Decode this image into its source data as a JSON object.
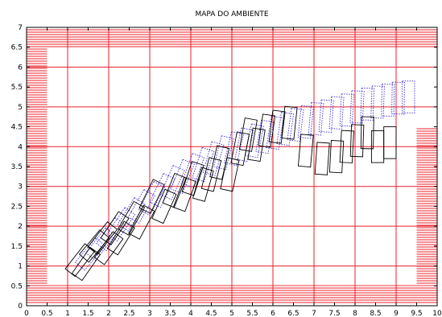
{
  "chart_data": {
    "type": "scatter",
    "title": "MAPA DO AMBIENTE",
    "xlabel": "",
    "ylabel": "",
    "xlim": [
      0,
      10
    ],
    "ylim": [
      0,
      7
    ],
    "xticks": [
      "0",
      "0.5",
      "1",
      "1.5",
      "2",
      "2.5",
      "3",
      "3.5",
      "4",
      "4.5",
      "5",
      "5.5",
      "6",
      "6.5",
      "7",
      "7.5",
      "8",
      "8.5",
      "9",
      "9.5",
      "10"
    ],
    "yticks": [
      "0",
      "0.5",
      "1",
      "1.5",
      "2",
      "2.5",
      "3",
      "3.5",
      "4",
      "4.5",
      "5",
      "5.5",
      "6",
      "6.5",
      "7"
    ],
    "grid": true,
    "grid_step": 1,
    "colors": {
      "walls": "#e8202a",
      "grid": "#e8202a",
      "planned_path": "#3a2bd6",
      "actual_path": "#000000",
      "axes": "#000000"
    },
    "walls": [
      {
        "name": "top-wall",
        "x0": 0,
        "x1": 10,
        "y0": 6.5,
        "y1": 7.0
      },
      {
        "name": "bottom-wall",
        "x0": 0,
        "x1": 10,
        "y0": 0.5,
        "y1": 0.55
      },
      {
        "name": "bottom-band",
        "x0": 0,
        "x1": 10,
        "y0": 0.05,
        "y1": 0.5
      },
      {
        "name": "left-wall",
        "x0": 0,
        "x1": 0.5,
        "y0": 0.5,
        "y1": 6.5
      },
      {
        "name": "right-wall",
        "x0": 9.5,
        "x1": 10,
        "y0": 0.55,
        "y1": 4.5
      }
    ],
    "series": [
      {
        "style": "dotted",
        "rect_w": 0.3,
        "rect_h": 0.8,
        "poses": [
          [
            1.55,
            1.3,
            40
          ],
          [
            1.8,
            1.55,
            38
          ],
          [
            2.05,
            1.8,
            36
          ],
          [
            2.3,
            2.05,
            34
          ],
          [
            2.55,
            2.3,
            32
          ],
          [
            2.8,
            2.5,
            30
          ],
          [
            3.05,
            2.7,
            28
          ],
          [
            3.3,
            2.9,
            26
          ],
          [
            3.55,
            3.1,
            24
          ],
          [
            3.8,
            3.25,
            22
          ],
          [
            4.05,
            3.4,
            20
          ],
          [
            4.3,
            3.55,
            18
          ],
          [
            4.55,
            3.7,
            16
          ],
          [
            4.8,
            3.85,
            14
          ],
          [
            5.05,
            3.95,
            13
          ],
          [
            5.3,
            4.05,
            12
          ],
          [
            5.55,
            4.15,
            11
          ],
          [
            5.8,
            4.25,
            10
          ],
          [
            6.05,
            4.35,
            9
          ],
          [
            6.3,
            4.45,
            8
          ],
          [
            6.55,
            4.55,
            7
          ],
          [
            6.8,
            4.62,
            6
          ],
          [
            7.05,
            4.7,
            5
          ],
          [
            7.3,
            4.77,
            4
          ],
          [
            7.55,
            4.85,
            4
          ],
          [
            7.8,
            4.92,
            3
          ],
          [
            8.05,
            5.0,
            3
          ],
          [
            8.3,
            5.07,
            2
          ],
          [
            8.55,
            5.12,
            2
          ],
          [
            8.8,
            5.17,
            1
          ],
          [
            9.05,
            5.22,
            1
          ],
          [
            9.3,
            5.25,
            0
          ]
        ]
      },
      {
        "style": "solid",
        "rect_w": 0.3,
        "rect_h": 0.8,
        "poses": [
          [
            1.3,
            1.15,
            38
          ],
          [
            1.45,
            1.05,
            35
          ],
          [
            1.65,
            1.5,
            40
          ],
          [
            1.85,
            1.7,
            38
          ],
          [
            2.0,
            1.45,
            36
          ],
          [
            2.15,
            1.95,
            34
          ],
          [
            2.3,
            1.7,
            32
          ],
          [
            2.55,
            2.2,
            30
          ],
          [
            2.8,
            2.1,
            28
          ],
          [
            3.05,
            2.75,
            26
          ],
          [
            3.35,
            2.5,
            24
          ],
          [
            3.6,
            2.9,
            22
          ],
          [
            3.85,
            2.8,
            20
          ],
          [
            4.05,
            3.2,
            18
          ],
          [
            4.3,
            3.05,
            16
          ],
          [
            4.5,
            3.3,
            14
          ],
          [
            4.7,
            3.6,
            13
          ],
          [
            4.95,
            3.3,
            12
          ],
          [
            5.2,
            3.95,
            11
          ],
          [
            5.4,
            4.3,
            10
          ],
          [
            5.6,
            4.05,
            9
          ],
          [
            5.85,
            4.4,
            8
          ],
          [
            6.1,
            4.5,
            7
          ],
          [
            6.4,
            4.6,
            6
          ],
          [
            6.8,
            3.9,
            5
          ],
          [
            7.2,
            3.7,
            4
          ],
          [
            7.55,
            3.75,
            3
          ],
          [
            7.8,
            4.0,
            3
          ],
          [
            8.05,
            4.15,
            2
          ],
          [
            8.3,
            4.35,
            1
          ],
          [
            8.55,
            4.0,
            0
          ],
          [
            8.85,
            4.1,
            0
          ]
        ]
      }
    ]
  }
}
